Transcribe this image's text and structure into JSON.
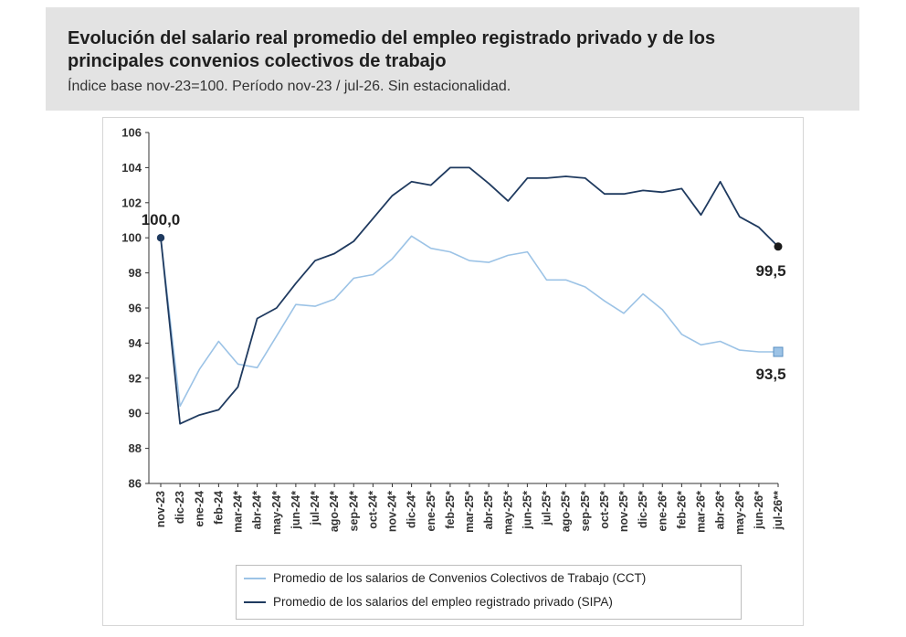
{
  "header": {
    "title": "Evolución del salario real promedio del empleo registrado privado y de los principales convenios colectivos de trabajo",
    "subtitle": "Índice base nov-23=100. Período nov-23 / jul-26. Sin estacionalidad."
  },
  "colors": {
    "cct": "#9cc3e6",
    "sipa": "#1f3a5f",
    "axis": "#333333",
    "header_bg": "#e3e3e3"
  },
  "chart_data": {
    "type": "line",
    "title": "",
    "xlabel": "",
    "ylabel": "",
    "ylim": [
      86,
      106
    ],
    "yticks": [
      86,
      88,
      90,
      92,
      94,
      96,
      98,
      100,
      102,
      104,
      106
    ],
    "grid": false,
    "legend_position": "bottom",
    "categories": [
      "nov-23",
      "dic-23",
      "ene-24",
      "feb-24",
      "mar-24*",
      "abr-24*",
      "may-24*",
      "jun-24*",
      "jul-24*",
      "ago-24*",
      "sep-24*",
      "oct-24*",
      "nov-24*",
      "dic-24*",
      "ene-25*",
      "feb-25*",
      "mar-25*",
      "abr-25*",
      "may-25*",
      "jun-25*",
      "jul-25*",
      "ago-25*",
      "sep-25*",
      "oct-25*",
      "nov-25*",
      "dic-25*",
      "ene-26*",
      "feb-26*",
      "mar-26*",
      "abr-26*",
      "may-26*",
      "jun-26*",
      "jul-26**"
    ],
    "series": [
      {
        "name": "Promedio de los salarios de Convenios Colectivos de Trabajo (CCT)",
        "color": "#9cc3e6",
        "values": [
          100.0,
          90.4,
          92.5,
          94.1,
          92.8,
          92.6,
          94.4,
          96.2,
          96.1,
          96.5,
          97.7,
          97.9,
          98.8,
          100.1,
          99.4,
          99.2,
          98.7,
          98.6,
          99.0,
          99.2,
          97.6,
          97.6,
          97.2,
          96.4,
          95.7,
          96.8,
          95.9,
          94.5,
          93.9,
          94.1,
          93.6,
          93.5,
          93.5
        ],
        "end_label": "93,5"
      },
      {
        "name": "Promedio de los salarios del empleo registrado privado (SIPA)",
        "color": "#1f3a5f",
        "values": [
          100.0,
          89.4,
          89.9,
          90.2,
          91.5,
          95.4,
          96.0,
          97.4,
          98.7,
          99.1,
          99.8,
          101.1,
          102.4,
          103.2,
          103.0,
          104.0,
          104.0,
          103.1,
          102.1,
          103.4,
          103.4,
          103.5,
          103.4,
          102.5,
          102.5,
          102.7,
          102.6,
          102.8,
          101.3,
          103.2,
          101.2,
          100.6,
          99.5
        ],
        "end_label": "99,5"
      }
    ],
    "annotations": [
      {
        "text": "100,0",
        "series": 1,
        "index": 0
      },
      {
        "text": "99,5",
        "series": 1,
        "index": 32
      },
      {
        "text": "93,5",
        "series": 0,
        "index": 32
      }
    ]
  }
}
